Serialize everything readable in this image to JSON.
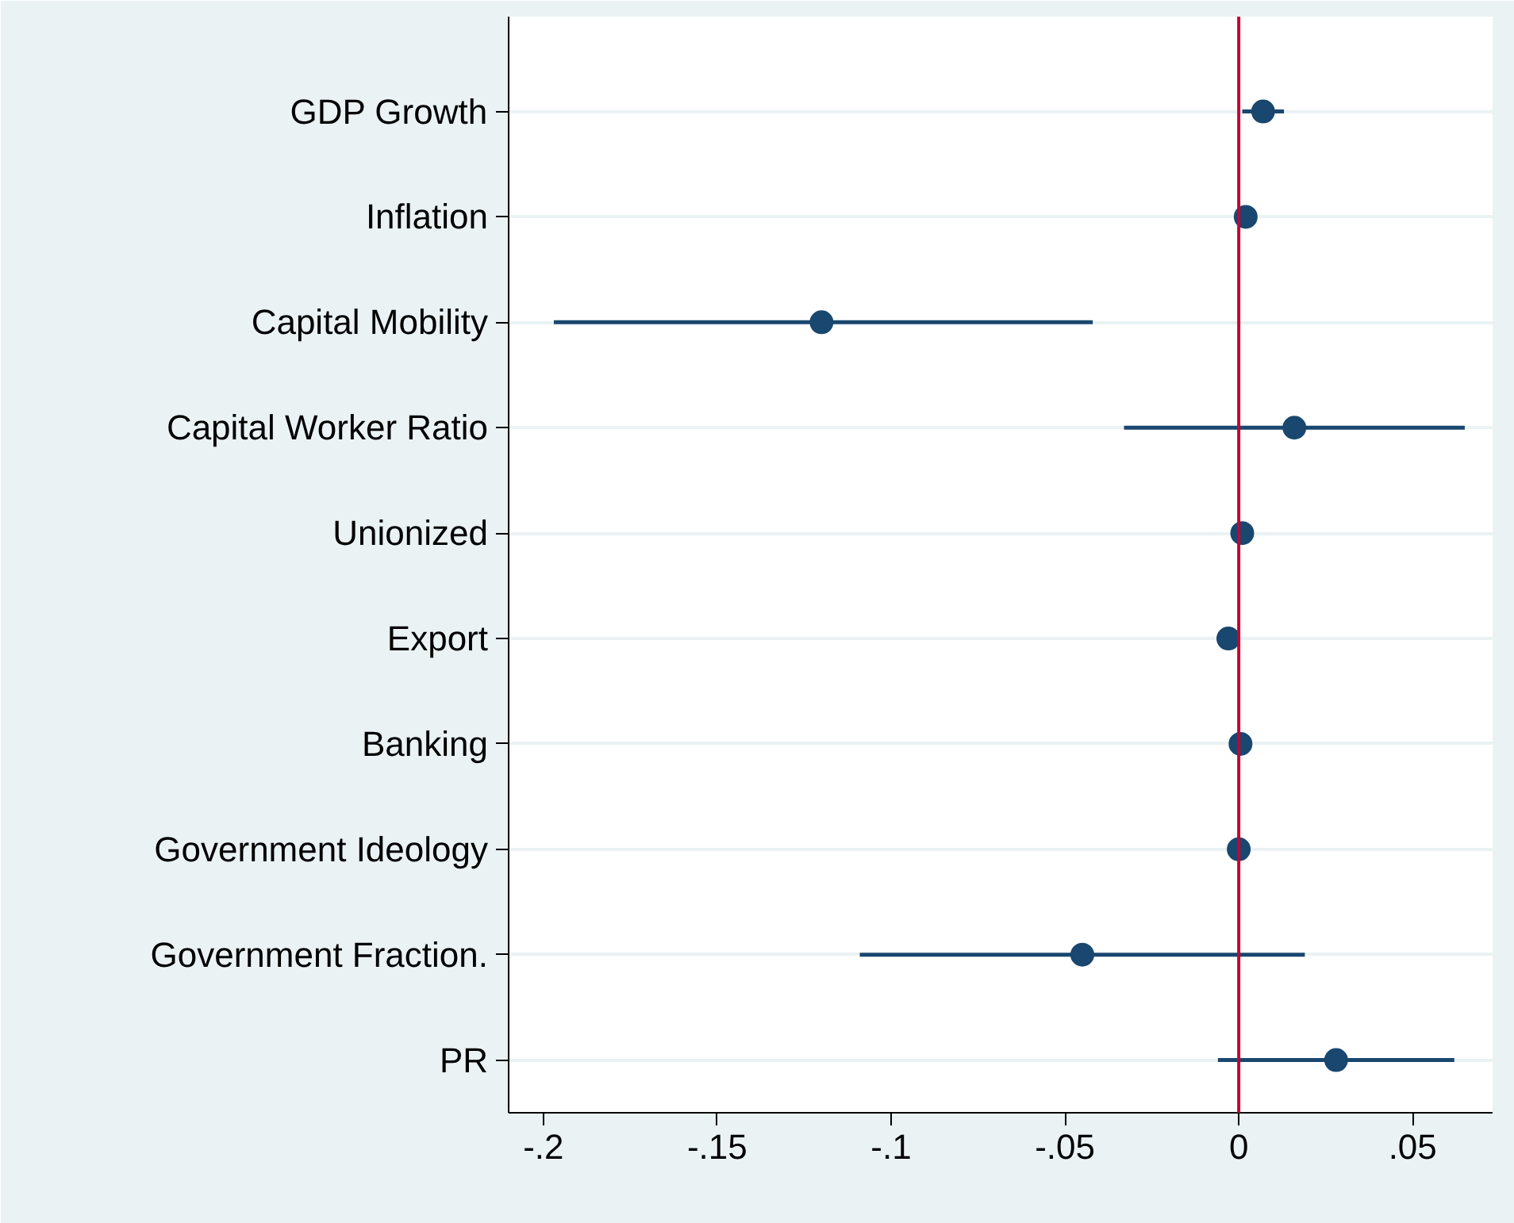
{
  "chart_data": {
    "type": "scatter",
    "orientation": "horizontal",
    "marker": "circle",
    "grid": "y",
    "categories": [
      "GDP Growth",
      "Inflation",
      "Capital Mobility",
      "Capital Worker Ratio",
      "Unionized",
      "Export",
      "Banking",
      "Government Ideology",
      "Government Fraction.",
      "PR"
    ],
    "values": [
      0.007,
      0.002,
      -0.12,
      0.016,
      0.001,
      -0.003,
      0.0005,
      0.0,
      -0.045,
      0.028
    ],
    "errors": [
      [
        0.001,
        0.013
      ],
      null,
      [
        -0.197,
        -0.042
      ],
      [
        -0.033,
        0.065
      ],
      null,
      null,
      null,
      null,
      [
        -0.109,
        0.019
      ],
      [
        -0.006,
        0.062
      ]
    ],
    "color": "#1a476f",
    "xlim": [
      -0.21,
      0.073
    ],
    "xticks": [
      {
        "value": -0.2,
        "label": "-.2"
      },
      {
        "value": -0.15,
        "label": "-.15"
      },
      {
        "value": -0.1,
        "label": "-.1"
      },
      {
        "value": -0.05,
        "label": "-.05"
      },
      0,
      {
        "value": 0.05,
        "label": ".05"
      }
    ],
    "ref_lines": [
      {
        "axis": "x",
        "value": 0,
        "color": "#c10534"
      }
    ]
  }
}
